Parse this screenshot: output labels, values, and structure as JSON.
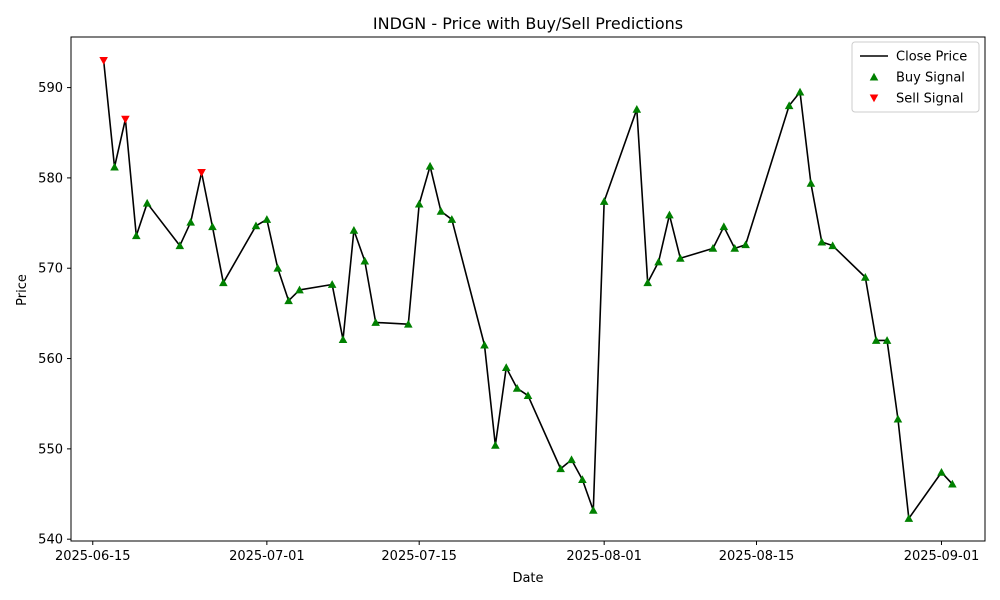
{
  "chart_data": {
    "type": "line",
    "title": "INDGN - Price with Buy/Sell Predictions",
    "xlabel": "Date",
    "ylabel": "Price",
    "xlim": [
      "2025-06-13",
      "2025-09-05"
    ],
    "ylim": [
      539.8,
      595.6
    ],
    "x_ticks": [
      "2025-06-15",
      "2025-07-01",
      "2025-07-15",
      "2025-08-01",
      "2025-08-15",
      "2025-09-01"
    ],
    "y_ticks": [
      540,
      550,
      560,
      570,
      580,
      590
    ],
    "grid": false,
    "legend_position": "top-right",
    "colors": {
      "line": "#000000",
      "buy": "#008000",
      "sell": "#ff0000"
    },
    "series": [
      {
        "name": "Close Price",
        "kind": "line",
        "points": [
          [
            "2025-06-16",
            593.0
          ],
          [
            "2025-06-17",
            581.2
          ],
          [
            "2025-06-18",
            586.5
          ],
          [
            "2025-06-19",
            573.6
          ],
          [
            "2025-06-20",
            577.2
          ],
          [
            "2025-06-23",
            572.5
          ],
          [
            "2025-06-24",
            575.1
          ],
          [
            "2025-06-25",
            580.6
          ],
          [
            "2025-06-26",
            574.6
          ],
          [
            "2025-06-27",
            568.4
          ],
          [
            "2025-06-30",
            574.7
          ],
          [
            "2025-07-01",
            575.4
          ],
          [
            "2025-07-02",
            570.0
          ],
          [
            "2025-07-03",
            566.4
          ],
          [
            "2025-07-04",
            567.6
          ],
          [
            "2025-07-07",
            568.2
          ],
          [
            "2025-07-08",
            562.1
          ],
          [
            "2025-07-09",
            574.2
          ],
          [
            "2025-07-10",
            570.8
          ],
          [
            "2025-07-11",
            564.0
          ],
          [
            "2025-07-14",
            563.8
          ],
          [
            "2025-07-15",
            577.1
          ],
          [
            "2025-07-16",
            581.3
          ],
          [
            "2025-07-17",
            576.3
          ],
          [
            "2025-07-18",
            575.4
          ],
          [
            "2025-07-21",
            561.5
          ],
          [
            "2025-07-22",
            550.4
          ],
          [
            "2025-07-23",
            559.0
          ],
          [
            "2025-07-24",
            556.7
          ],
          [
            "2025-07-25",
            555.9
          ],
          [
            "2025-07-28",
            547.8
          ],
          [
            "2025-07-29",
            548.8
          ],
          [
            "2025-07-30",
            546.6
          ],
          [
            "2025-07-31",
            543.2
          ],
          [
            "2025-08-01",
            577.4
          ],
          [
            "2025-08-04",
            587.6
          ],
          [
            "2025-08-05",
            568.4
          ],
          [
            "2025-08-06",
            570.7
          ],
          [
            "2025-08-07",
            575.9
          ],
          [
            "2025-08-08",
            571.1
          ],
          [
            "2025-08-11",
            572.2
          ],
          [
            "2025-08-12",
            574.6
          ],
          [
            "2025-08-13",
            572.2
          ],
          [
            "2025-08-14",
            572.6
          ],
          [
            "2025-08-18",
            588.0
          ],
          [
            "2025-08-19",
            589.5
          ],
          [
            "2025-08-20",
            579.4
          ],
          [
            "2025-08-21",
            572.9
          ],
          [
            "2025-08-22",
            572.5
          ],
          [
            "2025-08-25",
            569.0
          ],
          [
            "2025-08-26",
            562.0
          ],
          [
            "2025-08-27",
            562.0
          ],
          [
            "2025-08-28",
            553.3
          ],
          [
            "2025-08-29",
            542.3
          ],
          [
            "2025-09-01",
            547.4
          ],
          [
            "2025-09-02",
            546.1
          ]
        ]
      },
      {
        "name": "Buy Signal",
        "kind": "scatter",
        "marker": "triangle-up",
        "points": [
          [
            "2025-06-17",
            581.2
          ],
          [
            "2025-06-19",
            573.6
          ],
          [
            "2025-06-20",
            577.2
          ],
          [
            "2025-06-23",
            572.5
          ],
          [
            "2025-06-24",
            575.1
          ],
          [
            "2025-06-26",
            574.6
          ],
          [
            "2025-06-27",
            568.4
          ],
          [
            "2025-06-30",
            574.7
          ],
          [
            "2025-07-01",
            575.4
          ],
          [
            "2025-07-02",
            570.0
          ],
          [
            "2025-07-03",
            566.4
          ],
          [
            "2025-07-04",
            567.6
          ],
          [
            "2025-07-07",
            568.2
          ],
          [
            "2025-07-08",
            562.1
          ],
          [
            "2025-07-09",
            574.2
          ],
          [
            "2025-07-10",
            570.8
          ],
          [
            "2025-07-11",
            564.0
          ],
          [
            "2025-07-14",
            563.8
          ],
          [
            "2025-07-15",
            577.1
          ],
          [
            "2025-07-16",
            581.3
          ],
          [
            "2025-07-17",
            576.3
          ],
          [
            "2025-07-18",
            575.4
          ],
          [
            "2025-07-21",
            561.5
          ],
          [
            "2025-07-22",
            550.4
          ],
          [
            "2025-07-23",
            559.0
          ],
          [
            "2025-07-24",
            556.7
          ],
          [
            "2025-07-25",
            555.9
          ],
          [
            "2025-07-28",
            547.8
          ],
          [
            "2025-07-29",
            548.8
          ],
          [
            "2025-07-30",
            546.6
          ],
          [
            "2025-07-31",
            543.2
          ],
          [
            "2025-08-01",
            577.4
          ],
          [
            "2025-08-04",
            587.6
          ],
          [
            "2025-08-05",
            568.4
          ],
          [
            "2025-08-06",
            570.7
          ],
          [
            "2025-08-07",
            575.9
          ],
          [
            "2025-08-08",
            571.1
          ],
          [
            "2025-08-11",
            572.2
          ],
          [
            "2025-08-12",
            574.6
          ],
          [
            "2025-08-13",
            572.2
          ],
          [
            "2025-08-14",
            572.6
          ],
          [
            "2025-08-18",
            588.0
          ],
          [
            "2025-08-19",
            589.5
          ],
          [
            "2025-08-20",
            579.4
          ],
          [
            "2025-08-21",
            572.9
          ],
          [
            "2025-08-22",
            572.5
          ],
          [
            "2025-08-25",
            569.0
          ],
          [
            "2025-08-26",
            562.0
          ],
          [
            "2025-08-27",
            562.0
          ],
          [
            "2025-08-28",
            553.3
          ],
          [
            "2025-08-29",
            542.3
          ],
          [
            "2025-09-01",
            547.4
          ],
          [
            "2025-09-02",
            546.1
          ]
        ]
      },
      {
        "name": "Sell Signal",
        "kind": "scatter",
        "marker": "triangle-down",
        "points": [
          [
            "2025-06-16",
            593.0
          ],
          [
            "2025-06-18",
            586.5
          ],
          [
            "2025-06-25",
            580.6
          ]
        ]
      }
    ]
  }
}
